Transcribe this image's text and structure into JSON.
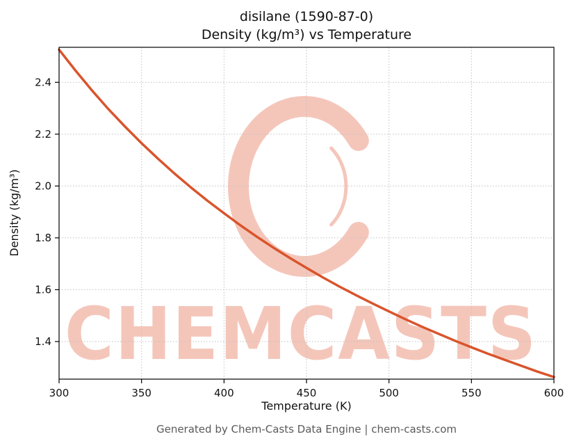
{
  "title_line1": "disilane (1590-87-0)",
  "title_line2": "Density (kg/m³) vs Temperature",
  "footer": "Generated by Chem-Casts Data Engine | chem-casts.com",
  "watermark": {
    "text": "CHEMCASTS",
    "logo": "c-swirl-logo",
    "color": "rgba(224,92,58,0.35)"
  },
  "chart_data": {
    "type": "line",
    "title": "disilane (1590-87-0) Density (kg/m³) vs Temperature",
    "xlabel": "Temperature (K)",
    "ylabel": "Density (kg/m³)",
    "xlim": [
      300,
      600
    ],
    "ylim": [
      1.255,
      2.535
    ],
    "x_ticks": [
      300,
      350,
      400,
      450,
      500,
      550,
      600
    ],
    "y_ticks": [
      1.4,
      1.6,
      1.8,
      2.0,
      2.2,
      2.4
    ],
    "grid": true,
    "legend": "none",
    "line_color": "#d9542c",
    "series": [
      {
        "name": "density",
        "x": [
          300,
          310,
          320,
          330,
          340,
          350,
          360,
          370,
          380,
          390,
          400,
          410,
          420,
          430,
          440,
          450,
          460,
          470,
          480,
          490,
          500,
          510,
          520,
          530,
          540,
          550,
          560,
          570,
          580,
          590,
          600
        ],
        "y": [
          2.526,
          2.445,
          2.368,
          2.296,
          2.229,
          2.165,
          2.105,
          2.048,
          1.994,
          1.943,
          1.895,
          1.848,
          1.804,
          1.762,
          1.722,
          1.684,
          1.647,
          1.612,
          1.579,
          1.547,
          1.516,
          1.486,
          1.457,
          1.43,
          1.403,
          1.378,
          1.353,
          1.33,
          1.307,
          1.284,
          1.263
        ]
      }
    ]
  }
}
